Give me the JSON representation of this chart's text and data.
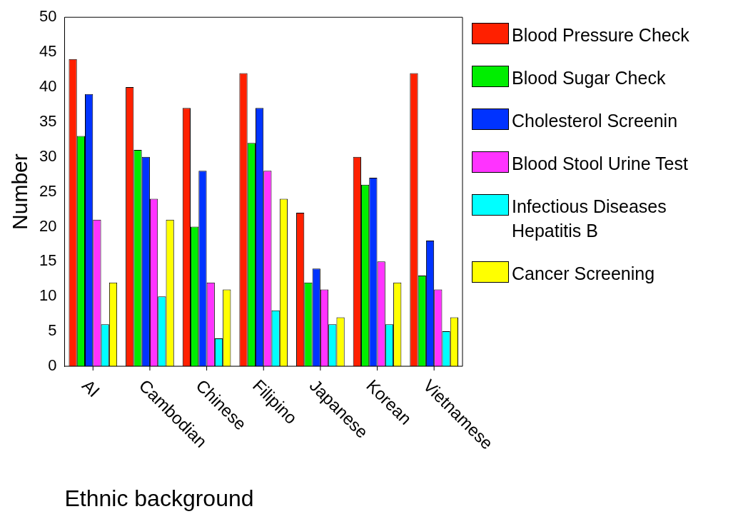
{
  "chart_data": {
    "type": "bar",
    "xlabel": "Ethnic background",
    "ylabel": "Number",
    "categories": [
      "AI",
      "Cambodian",
      "Chinese",
      "Filipino",
      "Japanese",
      "Korean",
      "Vietnamese"
    ],
    "series": [
      {
        "name": "Blood Pressure Check",
        "color": "#ff2000",
        "values": [
          44,
          40,
          37,
          42,
          22,
          30,
          42
        ]
      },
      {
        "name": "Blood Sugar Check",
        "color": "#00ee00",
        "values": [
          33,
          31,
          20,
          32,
          12,
          26,
          13
        ]
      },
      {
        "name": "Cholesterol Screenin",
        "color": "#0033ff",
        "values": [
          39,
          30,
          28,
          37,
          14,
          27,
          18
        ]
      },
      {
        "name": "Blood Stool Urine Test",
        "color": "#ff33ff",
        "values": [
          21,
          24,
          12,
          28,
          11,
          15,
          11
        ]
      },
      {
        "name": "Infectious Diseases Hepatitis B",
        "color": "#00ffff",
        "values": [
          6,
          10,
          4,
          8,
          6,
          6,
          5
        ]
      },
      {
        "name": "Cancer Screening",
        "color": "#ffff00",
        "values": [
          12,
          21,
          11,
          24,
          7,
          12,
          7
        ]
      }
    ],
    "ylim": [
      0,
      50
    ],
    "yticks": [
      0,
      5,
      10,
      15,
      20,
      25,
      30,
      35,
      40,
      45,
      50
    ],
    "grid": false,
    "legend": "right"
  }
}
